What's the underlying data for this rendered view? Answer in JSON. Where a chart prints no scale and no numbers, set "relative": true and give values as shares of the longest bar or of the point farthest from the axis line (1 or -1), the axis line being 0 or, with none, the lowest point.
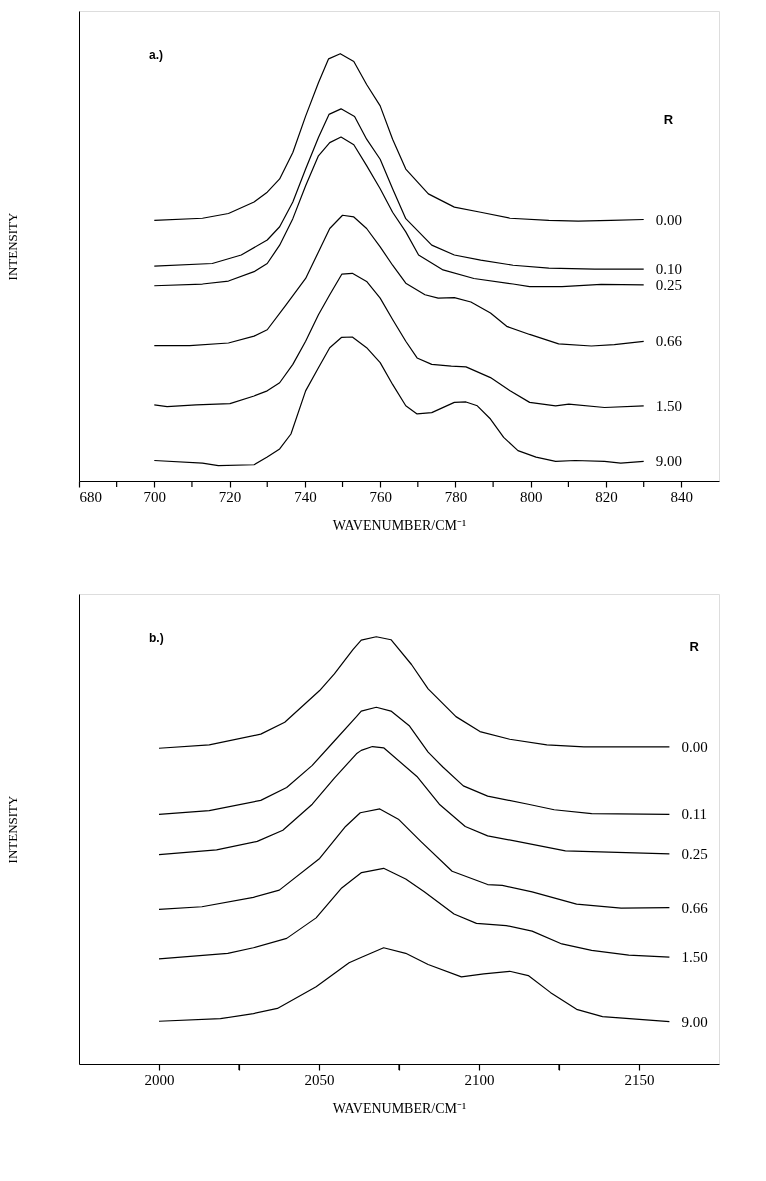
{
  "chart_data": [
    {
      "type": "line",
      "relative": true,
      "xlabel": "WAVENUMBER/CM⁻¹",
      "ylabel": "INTENSITY",
      "legend_title": "R",
      "annotations": [
        "a.)"
      ],
      "tick_labels": "x",
      "xlim": [
        680,
        850
      ],
      "xticks": [
        680,
        {
          "value": 690,
          "label": null
        },
        700,
        {
          "value": 710,
          "label": null
        },
        720,
        {
          "value": 730,
          "label": null
        },
        740,
        {
          "value": 750,
          "label": null
        },
        760,
        {
          "value": 770,
          "label": null
        },
        780,
        {
          "value": 790,
          "label": null
        },
        800,
        {
          "value": 810,
          "label": null
        },
        820,
        {
          "value": 830,
          "label": null
        },
        840
      ],
      "series": [
        {
          "name": "0.00",
          "color": "#000000",
          "x": [
            700,
            712.8,
            719.7,
            726.5,
            730,
            733.3,
            736.8,
            740.2,
            743.6,
            746.3,
            749.4,
            753,
            756.4,
            760,
            763.3,
            766.8,
            772.8,
            779.7,
            786.7,
            794.5,
            804.8,
            812.6,
            821.3,
            830
          ],
          "values": [
            0.61,
            0.615,
            0.626,
            0.653,
            0.676,
            0.707,
            0.769,
            0.854,
            0.932,
            0.988,
            1.0,
            0.982,
            0.928,
            0.878,
            0.8,
            0.73,
            0.672,
            0.641,
            0.629,
            0.615,
            0.61,
            0.608,
            0.61,
            0.612
          ]
        },
        {
          "name": "0.10",
          "color": "#000000",
          "x": [
            700,
            715.4,
            723.1,
            730,
            733.3,
            736.8,
            740.2,
            743.6,
            746.4,
            749.6,
            753.2,
            756.4,
            760,
            763.3,
            766.8,
            773.7,
            779.7,
            786.7,
            795.3,
            804.8,
            817,
            830
          ],
          "values": [
            0.503,
            0.509,
            0.529,
            0.564,
            0.595,
            0.653,
            0.73,
            0.804,
            0.858,
            0.871,
            0.853,
            0.8,
            0.753,
            0.684,
            0.614,
            0.552,
            0.529,
            0.517,
            0.505,
            0.498,
            0.496,
            0.496
          ]
        },
        {
          "name": "0.25",
          "color": "#000000",
          "x": [
            700,
            712.8,
            719.7,
            726.5,
            730,
            733.3,
            736.8,
            740.2,
            743.6,
            746.6,
            749.6,
            753,
            756.4,
            760,
            763.3,
            766.8,
            770.2,
            776.7,
            784.9,
            795.3,
            799.7,
            808.3,
            818.7,
            830
          ],
          "values": [
            0.457,
            0.461,
            0.468,
            0.49,
            0.509,
            0.552,
            0.614,
            0.691,
            0.761,
            0.792,
            0.805,
            0.787,
            0.738,
            0.684,
            0.629,
            0.583,
            0.529,
            0.494,
            0.474,
            0.461,
            0.455,
            0.455,
            0.46,
            0.459
          ]
        },
        {
          "name": "0.66",
          "color": "#000000",
          "x": [
            700,
            709.4,
            719.7,
            726.5,
            730,
            735,
            740.2,
            743.6,
            746.6,
            750,
            753,
            756.4,
            760,
            763.3,
            766.8,
            771.9,
            775.4,
            779.7,
            784.1,
            789.3,
            793.6,
            799.7,
            807.4,
            816.1,
            822.2,
            830
          ],
          "values": [
            0.317,
            0.317,
            0.323,
            0.339,
            0.354,
            0.412,
            0.474,
            0.536,
            0.591,
            0.622,
            0.618,
            0.591,
            0.548,
            0.505,
            0.463,
            0.436,
            0.428,
            0.429,
            0.419,
            0.393,
            0.362,
            0.343,
            0.321,
            0.316,
            0.319,
            0.327
          ]
        },
        {
          "name": "1.50",
          "color": "#000000",
          "x": [
            700,
            703.4,
            711.1,
            720.1,
            726.5,
            730,
            733.3,
            736.8,
            740.2,
            743.6,
            746.6,
            749.8,
            752.6,
            756.4,
            760,
            763.3,
            766.8,
            769.8,
            773.7,
            778.9,
            782.8,
            789.3,
            794.5,
            799.7,
            806.6,
            810.1,
            819.6,
            830
          ],
          "values": [
            0.178,
            0.174,
            0.178,
            0.181,
            0.199,
            0.211,
            0.23,
            0.273,
            0.327,
            0.389,
            0.436,
            0.484,
            0.486,
            0.467,
            0.428,
            0.378,
            0.327,
            0.288,
            0.273,
            0.269,
            0.267,
            0.242,
            0.211,
            0.184,
            0.176,
            0.18,
            0.172,
            0.176
          ]
        },
        {
          "name": "9.00",
          "color": "#000000",
          "x": [
            700,
            712.8,
            717,
            726.5,
            730,
            733.3,
            736.3,
            740.2,
            743.6,
            746.6,
            749.7,
            752.6,
            756.4,
            760,
            763.3,
            766.8,
            769.8,
            773.7,
            779.7,
            782.8,
            785.8,
            789.3,
            792.8,
            796.6,
            801.4,
            806.6,
            811.8,
            819.6,
            823.9,
            830
          ],
          "values": [
            0.048,
            0.042,
            0.036,
            0.038,
            0.056,
            0.075,
            0.11,
            0.211,
            0.265,
            0.312,
            0.336,
            0.337,
            0.312,
            0.277,
            0.226,
            0.176,
            0.157,
            0.16,
            0.184,
            0.185,
            0.176,
            0.145,
            0.102,
            0.071,
            0.056,
            0.046,
            0.048,
            0.046,
            0.042,
            0.046
          ]
        }
      ]
    },
    {
      "type": "line",
      "relative": true,
      "xlabel": "WAVENUMBER/CM⁻¹",
      "ylabel": "INTENSITY",
      "legend_title": "R",
      "annotations": [
        "b.)"
      ],
      "tick_labels": "x",
      "xlim": [
        1975,
        2175
      ],
      "xticks": [
        2000,
        {
          "value": 2025,
          "label": null
        },
        2050,
        {
          "value": 2075,
          "label": null
        },
        2100,
        {
          "value": 2125,
          "label": null
        },
        2150
      ],
      "series": [
        {
          "name": "0.00",
          "color": "#000000",
          "x": [
            2000,
            2015.7,
            2031.8,
            2039.3,
            2050.2,
            2054.8,
            2060.6,
            2063.2,
            2067.9,
            2072.5,
            2078.9,
            2084.1,
            2092.8,
            2100.3,
            2109.6,
            2121.2,
            2132.8,
            2159.5
          ],
          "values": [
            0.739,
            0.747,
            0.772,
            0.8,
            0.874,
            0.913,
            0.97,
            0.992,
            1.0,
            0.993,
            0.935,
            0.878,
            0.813,
            0.778,
            0.76,
            0.747,
            0.742,
            0.742
          ]
        },
        {
          "name": "0.11",
          "color": "#000000",
          "x": [
            2000,
            2015.7,
            2031.8,
            2039.9,
            2047.9,
            2054.8,
            2061.7,
            2063.2,
            2067.9,
            2072.5,
            2078.3,
            2084.1,
            2088.7,
            2095.1,
            2102.7,
            2115.4,
            2123.5,
            2135.2,
            2159.5
          ],
          "values": [
            0.584,
            0.593,
            0.617,
            0.647,
            0.699,
            0.756,
            0.813,
            0.826,
            0.835,
            0.826,
            0.791,
            0.73,
            0.695,
            0.651,
            0.627,
            0.608,
            0.595,
            0.586,
            0.584
          ]
        },
        {
          "name": "0.25",
          "color": "#000000",
          "x": [
            2000,
            2018,
            2030.7,
            2038.7,
            2047.9,
            2054.8,
            2061.7,
            2063.2,
            2066.7,
            2070.2,
            2080.6,
            2087.6,
            2095.7,
            2102.7,
            2111.9,
            2127,
            2159.5
          ],
          "values": [
            0.49,
            0.501,
            0.521,
            0.547,
            0.608,
            0.669,
            0.726,
            0.734,
            0.743,
            0.74,
            0.673,
            0.608,
            0.556,
            0.534,
            0.521,
            0.499,
            0.492
          ]
        },
        {
          "name": "0.66",
          "color": "#000000",
          "x": [
            2000,
            2013.4,
            2029.5,
            2037.6,
            2050.2,
            2058.3,
            2062.9,
            2069,
            2074.8,
            2081.8,
            2091.6,
            2102.7,
            2107.3,
            2116.6,
            2130.5,
            2144.4,
            2159.5
          ],
          "values": [
            0.362,
            0.368,
            0.39,
            0.407,
            0.481,
            0.556,
            0.588,
            0.597,
            0.573,
            0.521,
            0.451,
            0.42,
            0.418,
            0.403,
            0.374,
            0.365,
            0.366
          ]
        },
        {
          "name": "1.50",
          "color": "#000000",
          "x": [
            2000,
            2021.5,
            2029.5,
            2039.9,
            2049.1,
            2057.1,
            2063.3,
            2070.2,
            2077.1,
            2082.9,
            2092.2,
            2099.2,
            2108.5,
            2116.6,
            2125.9,
            2135.2,
            2146.8,
            2159.5
          ],
          "values": [
            0.246,
            0.259,
            0.272,
            0.294,
            0.342,
            0.412,
            0.448,
            0.458,
            0.433,
            0.403,
            0.351,
            0.329,
            0.324,
            0.311,
            0.281,
            0.266,
            0.255,
            0.25
          ]
        },
        {
          "name": "9.00",
          "color": "#000000",
          "x": [
            2000,
            2019.2,
            2029.5,
            2037,
            2049.1,
            2059.4,
            2063.3,
            2070.2,
            2077.1,
            2084.1,
            2094.5,
            2101.5,
            2109.6,
            2115.4,
            2122.4,
            2130.5,
            2138.6,
            2159.5
          ],
          "values": [
            0.1,
            0.106,
            0.118,
            0.13,
            0.181,
            0.237,
            0.25,
            0.272,
            0.259,
            0.233,
            0.204,
            0.211,
            0.217,
            0.207,
            0.167,
            0.128,
            0.111,
            0.099
          ]
        }
      ]
    }
  ]
}
